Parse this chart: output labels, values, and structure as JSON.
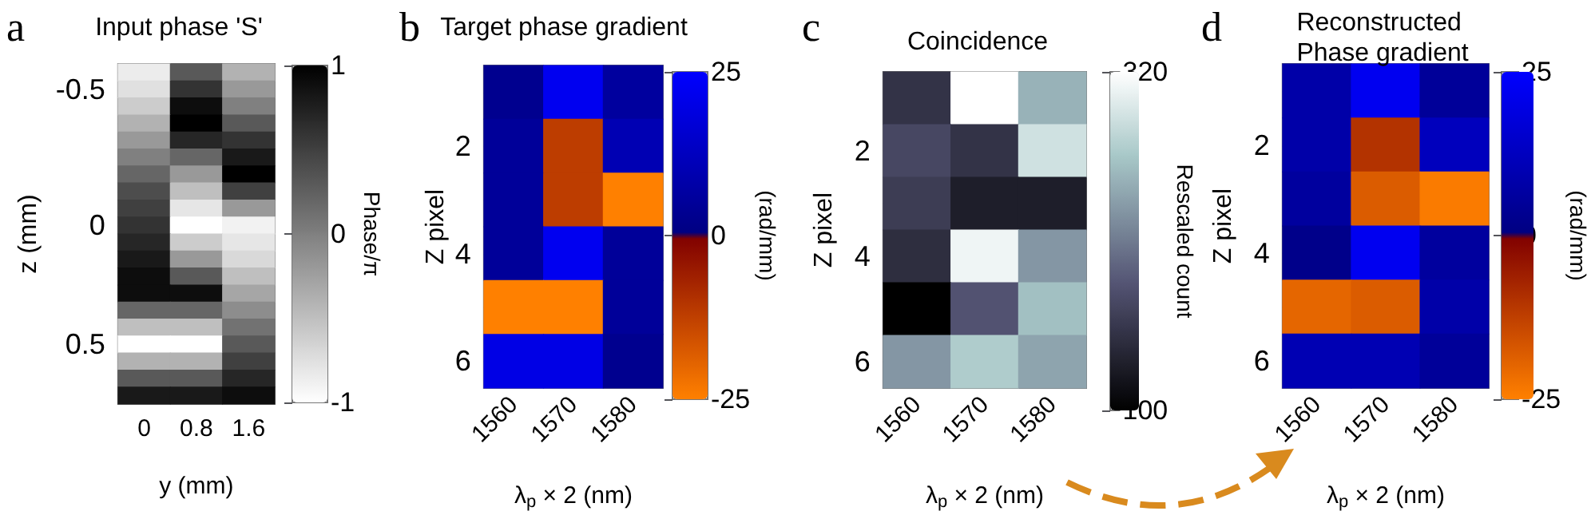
{
  "chart_data": [
    {
      "type": "heatmap",
      "title": "Input phase 'S'",
      "xlabel": "y (mm)",
      "ylabel": "z (mm)",
      "clabel": "Phase/π",
      "annotations": [
        "a"
      ],
      "categories": [
        "0",
        "0.8",
        "1.6"
      ],
      "y_categories": [
        null,
        "-0.5",
        null,
        null,
        null,
        null,
        null,
        null,
        null,
        "0",
        null,
        null,
        null,
        null,
        null,
        null,
        "0.5",
        null,
        null,
        null
      ],
      "clim": [
        -1,
        1
      ],
      "cticks": [
        -1,
        0,
        1
      ],
      "cells": [
        [
          -0.85,
          0.3,
          -0.4
        ],
        [
          -0.75,
          0.6,
          -0.2
        ],
        [
          -0.6,
          0.9,
          0
        ],
        [
          -0.4,
          1,
          0.3
        ],
        [
          -0.2,
          0.7,
          0.6
        ],
        [
          0,
          0.2,
          0.8
        ],
        [
          0.2,
          -0.2,
          1
        ],
        [
          0.4,
          -0.5,
          0.5
        ],
        [
          0.5,
          -0.8,
          -0.2
        ],
        [
          0.6,
          -1,
          -0.9
        ],
        [
          0.7,
          -0.6,
          -0.8
        ],
        [
          0.8,
          -0.2,
          -0.7
        ],
        [
          0.9,
          0.3,
          -0.5
        ],
        [
          0.9,
          0.9,
          -0.3
        ],
        [
          0.2,
          0.2,
          -0.1
        ],
        [
          -0.5,
          -0.5,
          0.1
        ],
        [
          -1,
          -1,
          0.3
        ],
        [
          -0.4,
          -0.4,
          0.5
        ],
        [
          0.3,
          0.3,
          0.7
        ],
        [
          0.8,
          0.8,
          0.9
        ]
      ]
    },
    {
      "type": "heatmap",
      "title": "Target phase gradient",
      "xlabel": "λ$_{p}$ × 2 (nm)",
      "ylabel": "Z pixel",
      "clabel": "(rad/mm)",
      "annotations": [
        "b"
      ],
      "categories": [
        "1560",
        "1570",
        "1580"
      ],
      "y_categories": [
        null,
        "2",
        null,
        "4",
        null,
        "6"
      ],
      "clim": [
        -25,
        25
      ],
      "cticks": [
        -25,
        0,
        25
      ],
      "cells": [
        [
          3,
          22,
          6
        ],
        [
          5,
          -12,
          10
        ],
        [
          5,
          -12,
          -25
        ],
        [
          5,
          22,
          5
        ],
        [
          -25,
          -25,
          5
        ],
        [
          20,
          20,
          3
        ]
      ]
    },
    {
      "type": "heatmap",
      "title": "Coincidence",
      "xlabel": "λ$_{p}$ × 2 (nm)",
      "ylabel": "Z pixel",
      "clabel": "Rescaled count",
      "annotations": [
        "c"
      ],
      "categories": [
        "1560",
        "1570",
        "1580"
      ],
      "y_categories": [
        null,
        "2",
        null,
        "4",
        null,
        "6"
      ],
      "clim": [
        100,
        320
      ],
      "cticks": [
        100,
        320
      ],
      "cells": [
        [
          150,
          320,
          250
        ],
        [
          170,
          150,
          290
        ],
        [
          160,
          130,
          130
        ],
        [
          145,
          310,
          230
        ],
        [
          100,
          180,
          260
        ],
        [
          230,
          270,
          240
        ]
      ]
    },
    {
      "type": "heatmap",
      "title": "Reconstructed Phase gradient",
      "xlabel": "λ$_{p}$ × 2 (nm)",
      "ylabel": "Z pixel",
      "clabel": "(rad/mm)",
      "annotations": [
        "d"
      ],
      "categories": [
        "1560",
        "1570",
        "1580"
      ],
      "y_categories": [
        null,
        "2",
        null,
        "4",
        null,
        "6"
      ],
      "clim": [
        -25,
        25
      ],
      "cticks": [
        -25,
        0,
        25
      ],
      "cells": [
        [
          8,
          22,
          5
        ],
        [
          8,
          -10,
          12
        ],
        [
          6,
          -18,
          -24
        ],
        [
          2,
          22,
          6
        ],
        [
          -20,
          -18,
          8
        ],
        [
          10,
          10,
          5
        ]
      ]
    }
  ]
}
